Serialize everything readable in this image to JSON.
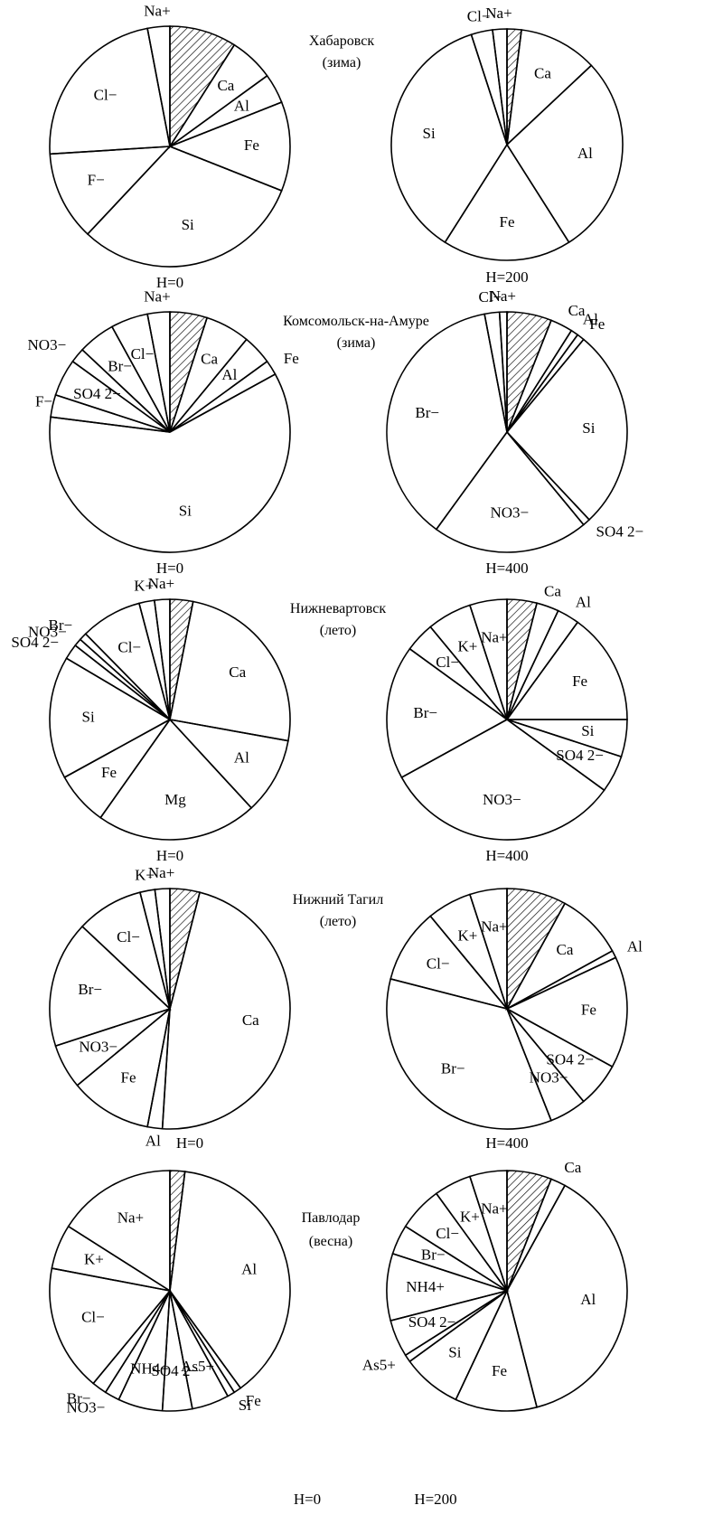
{
  "chart_data": [
    {
      "type": "pie",
      "city": "Хабаровск",
      "season": "(зима)",
      "height_label": "H=0",
      "slices": [
        {
          "label": "",
          "value": 9,
          "hatched": true
        },
        {
          "label": "Ca",
          "value": 6
        },
        {
          "label": "Al",
          "value": 4
        },
        {
          "label": "Fe",
          "value": 12
        },
        {
          "label": "Si",
          "value": 31
        },
        {
          "label": "F−",
          "value": 12
        },
        {
          "label": "Cl−",
          "value": 23
        },
        {
          "label": "Na+",
          "value": 3
        }
      ]
    },
    {
      "type": "pie",
      "city": "",
      "season": "",
      "height_label": "H=200",
      "slices": [
        {
          "label": "",
          "value": 2,
          "hatched": true
        },
        {
          "label": "Ca",
          "value": 11
        },
        {
          "label": "Al",
          "value": 28
        },
        {
          "label": "Fe",
          "value": 18
        },
        {
          "label": "Si",
          "value": 36
        },
        {
          "label": "Cl−",
          "value": 3
        },
        {
          "label": "Na+",
          "value": 2
        }
      ]
    },
    {
      "type": "pie",
      "city": "Комсомольск-на-Амуре",
      "season": "(зима)",
      "height_label": "H=0",
      "slices": [
        {
          "label": "",
          "value": 5,
          "hatched": true
        },
        {
          "label": "Ca",
          "value": 6
        },
        {
          "label": "Al",
          "value": 4
        },
        {
          "label": "Fe",
          "value": 2
        },
        {
          "label": "Si",
          "value": 60
        },
        {
          "label": "F−",
          "value": 3
        },
        {
          "label": "SO4 2−",
          "value": 5
        },
        {
          "label": "NO3−",
          "value": 2
        },
        {
          "label": "Br−",
          "value": 5
        },
        {
          "label": "Cl−",
          "value": 5
        },
        {
          "label": "Na+",
          "value": 3
        }
      ]
    },
    {
      "type": "pie",
      "city": "",
      "season": "",
      "height_label": "H=400",
      "slices": [
        {
          "label": "",
          "value": 6,
          "hatched": true
        },
        {
          "label": "Ca",
          "value": 3
        },
        {
          "label": "Al",
          "value": 1
        },
        {
          "label": "Fe",
          "value": 1
        },
        {
          "label": "Si",
          "value": 27
        },
        {
          "label": "SO4 2−",
          "value": 1
        },
        {
          "label": "NO3−",
          "value": 21
        },
        {
          "label": "Br−",
          "value": 37
        },
        {
          "label": "Cl−",
          "value": 2
        },
        {
          "label": "Na+",
          "value": 1
        }
      ]
    },
    {
      "type": "pie",
      "city": "Нижневартовск",
      "season": "(лето)",
      "height_label": "H=0",
      "slices": [
        {
          "label": "",
          "value": 3,
          "hatched": true
        },
        {
          "label": "Ca",
          "value": 24
        },
        {
          "label": "Al",
          "value": 10
        },
        {
          "label": "Mg",
          "value": 21
        },
        {
          "label": "Fe",
          "value": 7
        },
        {
          "label": "Si",
          "value": 16
        },
        {
          "label": "SO4 2−",
          "value": 2
        },
        {
          "label": "NO3−",
          "value": 1
        },
        {
          "label": "Br−",
          "value": 1
        },
        {
          "label": "Cl−",
          "value": 8
        },
        {
          "label": "K+",
          "value": 2
        },
        {
          "label": "Na+",
          "value": 2
        }
      ]
    },
    {
      "type": "pie",
      "city": "",
      "season": "",
      "height_label": "H=400",
      "slices": [
        {
          "label": "",
          "value": 4,
          "hatched": true
        },
        {
          "label": "Ca",
          "value": 3
        },
        {
          "label": "Al",
          "value": 3
        },
        {
          "label": "Fe",
          "value": 15
        },
        {
          "label": "Si",
          "value": 5
        },
        {
          "label": "SO4 2−",
          "value": 5
        },
        {
          "label": "NO3−",
          "value": 32
        },
        {
          "label": "Br−",
          "value": 18
        },
        {
          "label": "Cl−",
          "value": 4
        },
        {
          "label": "K+",
          "value": 6
        },
        {
          "label": "Na+",
          "value": 5
        }
      ]
    },
    {
      "type": "pie",
      "city": "Нижний Тагил",
      "season": "(лето)",
      "height_label": "H=0",
      "slices": [
        {
          "label": "",
          "value": 4,
          "hatched": true
        },
        {
          "label": "Ca",
          "value": 47
        },
        {
          "label": "Al",
          "value": 2
        },
        {
          "label": "Fe",
          "value": 11
        },
        {
          "label": "NO3−",
          "value": 6
        },
        {
          "label": "Br−",
          "value": 17
        },
        {
          "label": "Cl−",
          "value": 9
        },
        {
          "label": "K+",
          "value": 2
        },
        {
          "label": "Na+",
          "value": 2
        }
      ]
    },
    {
      "type": "pie",
      "city": "",
      "season": "",
      "height_label": "H=400",
      "slices": [
        {
          "label": "",
          "value": 8,
          "hatched": true
        },
        {
          "label": "Ca",
          "value": 9
        },
        {
          "label": "Al",
          "value": 1
        },
        {
          "label": "Fe",
          "value": 15
        },
        {
          "label": "SO4 2−",
          "value": 6
        },
        {
          "label": "NO3−",
          "value": 5
        },
        {
          "label": "Br−",
          "value": 35
        },
        {
          "label": "Cl−",
          "value": 10
        },
        {
          "label": "K+",
          "value": 6
        },
        {
          "label": "Na+",
          "value": 5
        }
      ]
    },
    {
      "type": "pie",
      "city": "Павлодар",
      "season": "(весна)",
      "height_label": "H=0",
      "slices": [
        {
          "label": "",
          "value": 2,
          "hatched": true
        },
        {
          "label": "Al",
          "value": 38
        },
        {
          "label": "Fe",
          "value": 1
        },
        {
          "label": "Si",
          "value": 1
        },
        {
          "label": "As5+",
          "value": 5
        },
        {
          "label": "SO4 2−",
          "value": 4
        },
        {
          "label": "NH4+",
          "value": 6
        },
        {
          "label": "NO3−",
          "value": 2
        },
        {
          "label": "Br−",
          "value": 2
        },
        {
          "label": "Cl−",
          "value": 17
        },
        {
          "label": "K+",
          "value": 6
        },
        {
          "label": "Na+",
          "value": 16
        }
      ]
    },
    {
      "type": "pie",
      "city": "",
      "season": "",
      "height_label": "H=200",
      "slices": [
        {
          "label": "",
          "value": 6,
          "hatched": true
        },
        {
          "label": "Ca",
          "value": 2
        },
        {
          "label": "Al",
          "value": 38
        },
        {
          "label": "Fe",
          "value": 11
        },
        {
          "label": "Si",
          "value": 8
        },
        {
          "label": "As5+",
          "value": 1
        },
        {
          "label": "SO4 2−",
          "value": 5
        },
        {
          "label": "NH4+",
          "value": 9
        },
        {
          "label": "Br−",
          "value": 4
        },
        {
          "label": "Cl−",
          "value": 6
        },
        {
          "label": "K+",
          "value": 5
        },
        {
          "label": "Na+",
          "value": 5
        }
      ]
    }
  ]
}
